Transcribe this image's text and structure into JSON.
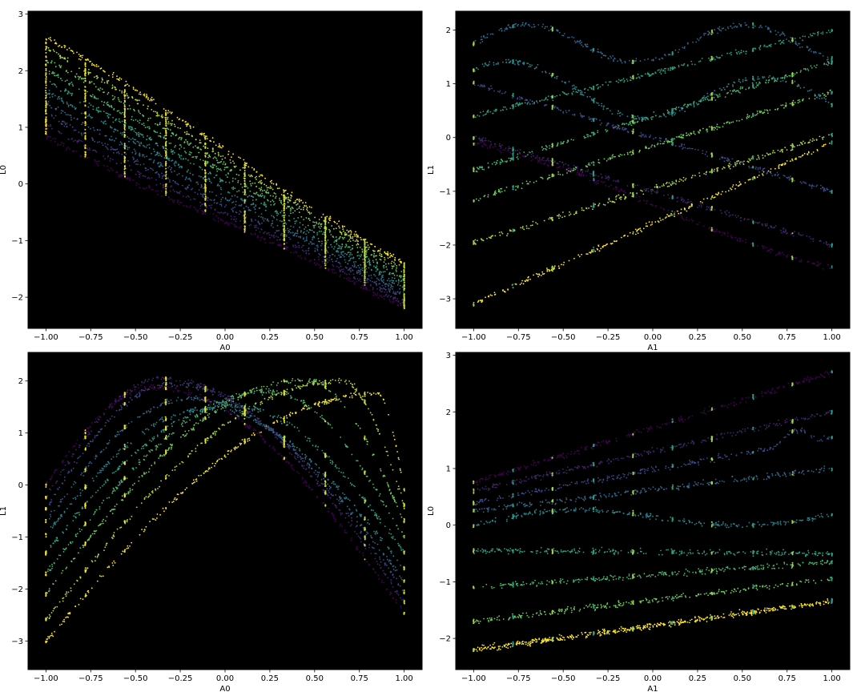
{
  "colors": {
    "plot_background": "#000000",
    "figure_background": "#ffffff",
    "colormap": "viridis",
    "viridis_stops": [
      "#440154",
      "#3b528b",
      "#21918c",
      "#5ec962",
      "#fde725"
    ]
  },
  "chart_data": [
    {
      "type": "scatter",
      "xlabel": "A0",
      "ylabel": "L0",
      "xlim": [
        -1.1,
        1.1
      ],
      "ylim": [
        -2.55,
        3.05
      ],
      "xticks": [
        "−1.00",
        "−0.75",
        "−0.50",
        "−0.25",
        "0.00",
        "0.25",
        "0.50",
        "0.75",
        "1.00"
      ],
      "yticks": [
        "−2",
        "−1",
        "0",
        "1",
        "2",
        "3"
      ],
      "grid": false,
      "colormap": "viridis",
      "curve_count": 10,
      "color_by": "A1",
      "curve_endpoints_A1_-1": [
        [
          -1.0,
          0.85
        ],
        [
          1.0,
          -2.2
        ]
      ],
      "curve_endpoints_A1_1": [
        [
          -1.0,
          2.6
        ],
        [
          1.0,
          -1.4
        ]
      ],
      "crossing_point": [
        0.3,
        -0.5
      ],
      "vertical_slices_x": [
        -1.0,
        -0.78,
        -0.56,
        -0.33,
        -0.11,
        0.11,
        0.33,
        0.56,
        0.78,
        1.0
      ]
    },
    {
      "type": "scatter",
      "xlabel": "A1",
      "ylabel": "L1",
      "xlim": [
        -1.1,
        1.1
      ],
      "ylim": [
        -3.55,
        2.35
      ],
      "xticks": [
        "−1.00",
        "−0.75",
        "−0.50",
        "−0.25",
        "0.00",
        "0.25",
        "0.50",
        "0.75",
        "1.00"
      ],
      "yticks": [
        "−3",
        "−2",
        "−1",
        "0",
        "1",
        "2"
      ],
      "grid": false,
      "colormap": "viridis",
      "curve_count": 10,
      "color_by": "A0",
      "line_start_values": [
        -3.1,
        -1.95,
        -1.15,
        -0.6,
        0.4,
        1.0,
        1.75,
        1.0,
        0.0,
        -0.1
      ],
      "line_slopes": [
        1.5,
        1.0,
        1.0,
        1.0,
        0.8,
        -0.8,
        -1.0,
        -1.0,
        -1.0,
        -1.2
      ],
      "vertical_slices_x": [
        -1.0,
        -0.78,
        -0.56,
        -0.33,
        -0.11,
        0.11,
        0.33,
        0.56,
        0.78,
        1.0
      ]
    },
    {
      "type": "scatter",
      "xlabel": "A0",
      "ylabel": "L1",
      "xlim": [
        -1.1,
        1.1
      ],
      "ylim": [
        -3.55,
        2.55
      ],
      "xticks": [
        "−1.00",
        "−0.75",
        "−0.50",
        "−0.25",
        "0.00",
        "0.25",
        "0.50",
        "0.75",
        "1.00"
      ],
      "yticks": [
        "−3",
        "−2",
        "−1",
        "0",
        "1",
        "2"
      ],
      "grid": false,
      "colormap": "viridis",
      "curve_count": 10,
      "color_by": "A1",
      "peak_x_by_curve": [
        0.85,
        0.65,
        0.45,
        0.25,
        0.05,
        -0.1,
        -0.2,
        -0.3,
        -0.35,
        -0.4
      ],
      "curve_endpoints_left": [
        -3.0,
        -2.6,
        -2.1,
        -1.7,
        -1.3,
        -0.95,
        -0.7,
        -0.45,
        -0.25,
        0.0
      ],
      "curve_endpoints_right": [
        -0.1,
        -0.4,
        -0.7,
        -1.0,
        -1.3,
        -1.6,
        -1.85,
        -2.05,
        -2.25,
        -2.45
      ],
      "vertical_slices_x": [
        -1.0,
        -0.78,
        -0.56,
        -0.33,
        -0.11,
        0.11,
        0.33,
        0.56,
        0.78,
        1.0
      ]
    },
    {
      "type": "scatter",
      "xlabel": "A1",
      "ylabel": "L0",
      "xlim": [
        -1.1,
        1.1
      ],
      "ylim": [
        -2.55,
        3.05
      ],
      "xticks": [
        "−1.00",
        "−0.75",
        "−0.50",
        "−0.25",
        "0.00",
        "0.25",
        "0.50",
        "0.75",
        "1.00"
      ],
      "yticks": [
        "−2",
        "−1",
        "0",
        "1",
        "2",
        "3"
      ],
      "grid": false,
      "colormap": "viridis",
      "curve_count": 10,
      "color_by": "A0",
      "line_start_values": [
        0.75,
        0.6,
        0.4,
        0.25,
        0.0,
        -0.45,
        -1.1,
        -1.7,
        -2.2,
        -2.2
      ],
      "line_end_values": [
        2.7,
        2.0,
        1.55,
        1.0,
        0.25,
        -0.5,
        -0.65,
        -0.95,
        -1.35,
        -1.35
      ],
      "vertical_slices_x": [
        -1.0,
        -0.78,
        -0.56,
        -0.33,
        -0.11,
        0.11,
        0.33,
        0.56,
        0.78,
        1.0
      ]
    }
  ]
}
